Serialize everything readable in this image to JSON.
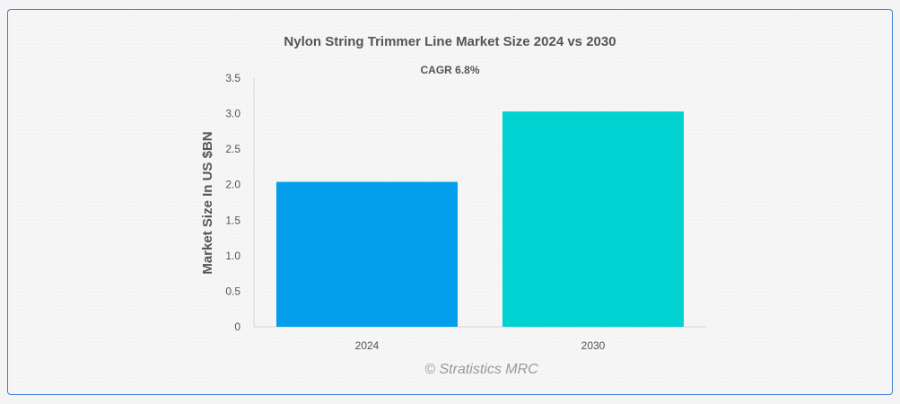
{
  "chart_data": {
    "type": "bar",
    "title": "Nylon String Trimmer Line Market Size 2024 vs 2030",
    "subtitle": "CAGR 6.8%",
    "categories": [
      "2024",
      "2030"
    ],
    "values": [
      2.04,
      3.03
    ],
    "colors": [
      "#049fec",
      "#00d2d2"
    ],
    "xlabel": "",
    "ylabel": "Market Size In US $BN",
    "ylim": [
      0,
      3.5
    ],
    "yticks": [
      0,
      0.5,
      1.0,
      1.5,
      2.0,
      2.5,
      3.0,
      3.5
    ],
    "ytick_labels": [
      "0",
      "0.5",
      "1.0",
      "1.5",
      "2.0",
      "2.5",
      "3.0",
      "3.5"
    ],
    "grid": false,
    "legend": "none"
  },
  "watermark": "© Stratistics MRC"
}
